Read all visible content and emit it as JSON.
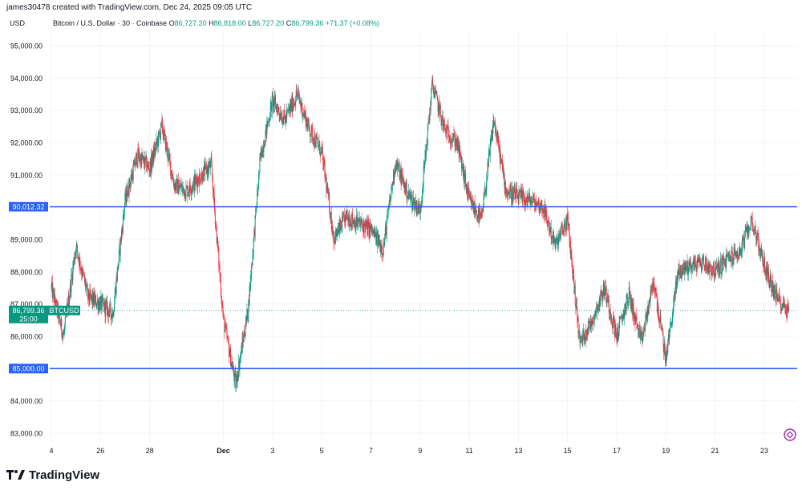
{
  "header": {
    "caption": "james30478 created with TradingView.com, Dec 24, 2025 09:05 UTC",
    "price_axis_title": "USD",
    "symbol_title": "Bitcoin / U.S. Dollar · 30 · Coinbase",
    "open_label": "O",
    "open": "86,727.20",
    "high_label": "H",
    "high": "86,818.00",
    "low_label": "L",
    "low": "86,727.20",
    "close_label": "C",
    "close": "86,799.36",
    "change": "+71.37 (+0.08%)"
  },
  "footer": {
    "brand": "TradingView"
  },
  "icons": {
    "logo": "tradingview-logo-icon",
    "refresh": "refresh-icon"
  },
  "colors": {
    "up": "#089981",
    "down": "#f23645",
    "line": "#2962ff",
    "price_label": "#089981",
    "grid": "#f0f3fa",
    "axis_text": "#131722"
  },
  "chart_data": {
    "type": "candlestick",
    "symbol": "BTCUSD",
    "title": "Bitcoin / U.S. Dollar · 30 · Coinbase",
    "ylim": [
      82600,
      95500
    ],
    "y_ticks": [
      83000,
      84000,
      85000,
      86000,
      87000,
      88000,
      89000,
      90000,
      91000,
      92000,
      93000,
      94000,
      95000
    ],
    "y_tick_labels": [
      "83,000.00",
      "84,000.00",
      "85,000.00",
      "86,000.00",
      "87,000.00",
      "88,000.00",
      "89,000.00",
      "90,000.00",
      "91,000.00",
      "92,000.00",
      "93,000.00",
      "94,000.00",
      "95,000.00"
    ],
    "x_start": "2025-11-24",
    "x_end": "2025-12-24",
    "x_ticks": [
      {
        "date": "2025-11-24",
        "label": "4"
      },
      {
        "date": "2025-11-26",
        "label": "26"
      },
      {
        "date": "2025-11-28",
        "label": "28"
      },
      {
        "date": "2025-12-01",
        "label": "Dec"
      },
      {
        "date": "2025-12-03",
        "label": "3"
      },
      {
        "date": "2025-12-05",
        "label": "5"
      },
      {
        "date": "2025-12-07",
        "label": "7"
      },
      {
        "date": "2025-12-09",
        "label": "9"
      },
      {
        "date": "2025-12-11",
        "label": "11"
      },
      {
        "date": "2025-12-13",
        "label": "13"
      },
      {
        "date": "2025-12-15",
        "label": "15"
      },
      {
        "date": "2025-12-17",
        "label": "17"
      },
      {
        "date": "2025-12-19",
        "label": "19"
      },
      {
        "date": "2025-12-21",
        "label": "21"
      },
      {
        "date": "2025-12-23",
        "label": "23"
      }
    ],
    "price_path": [
      [
        "2025-11-24",
        87500
      ],
      [
        "2025-11-24T12",
        86000
      ],
      [
        "2025-11-25",
        88800
      ],
      [
        "2025-11-25T12",
        87200
      ],
      [
        "2025-11-26",
        87000
      ],
      [
        "2025-11-26T12",
        86700
      ],
      [
        "2025-11-27",
        90200
      ],
      [
        "2025-11-27T12",
        91600
      ],
      [
        "2025-11-28",
        91200
      ],
      [
        "2025-11-28T12",
        92500
      ],
      [
        "2025-11-29",
        90700
      ],
      [
        "2025-11-29T12",
        90500
      ],
      [
        "2025-11-30",
        90900
      ],
      [
        "2025-11-30T12",
        91300
      ],
      [
        "2025-12-01",
        86500
      ],
      [
        "2025-12-01T12",
        84500
      ],
      [
        "2025-12-02",
        86800
      ],
      [
        "2025-12-02T12",
        91500
      ],
      [
        "2025-12-03",
        93300
      ],
      [
        "2025-12-03T12",
        92700
      ],
      [
        "2025-12-04",
        93500
      ],
      [
        "2025-12-04T12",
        92400
      ],
      [
        "2025-12-05",
        91700
      ],
      [
        "2025-12-05T12",
        89000
      ],
      [
        "2025-12-06",
        89700
      ],
      [
        "2025-12-06T12",
        89500
      ],
      [
        "2025-12-07",
        89300
      ],
      [
        "2025-12-07T12",
        88700
      ],
      [
        "2025-12-08",
        91400
      ],
      [
        "2025-12-08T12",
        90400
      ],
      [
        "2025-12-09",
        89900
      ],
      [
        "2025-12-09T12",
        93800
      ],
      [
        "2025-12-10",
        92400
      ],
      [
        "2025-12-10T12",
        92000
      ],
      [
        "2025-12-11",
        90200
      ],
      [
        "2025-12-11T12",
        89600
      ],
      [
        "2025-12-12",
        92700
      ],
      [
        "2025-12-12T12",
        90500
      ],
      [
        "2025-12-13",
        90300
      ],
      [
        "2025-12-13T12",
        90200
      ],
      [
        "2025-12-14",
        90000
      ],
      [
        "2025-12-14T12",
        88800
      ],
      [
        "2025-12-15",
        89600
      ],
      [
        "2025-12-15T12",
        85800
      ],
      [
        "2025-12-16",
        86500
      ],
      [
        "2025-12-16T12",
        87500
      ],
      [
        "2025-12-17",
        86000
      ],
      [
        "2025-12-17T12",
        87300
      ],
      [
        "2025-12-18",
        85800
      ],
      [
        "2025-12-18T12",
        87700
      ],
      [
        "2025-12-19",
        85300
      ],
      [
        "2025-12-19T12",
        88000
      ],
      [
        "2025-12-20",
        88200
      ],
      [
        "2025-12-20T12",
        88300
      ],
      [
        "2025-12-21",
        88000
      ],
      [
        "2025-12-21T12",
        88400
      ],
      [
        "2025-12-22",
        88600
      ],
      [
        "2025-12-22T12",
        89600
      ],
      [
        "2025-12-23",
        88200
      ],
      [
        "2025-12-23T12",
        87200
      ],
      [
        "2025-12-24",
        86800
      ]
    ],
    "horizontal_lines": [
      {
        "price": 90012.32,
        "label": "90,012.32"
      },
      {
        "price": 85000.0,
        "label": "85,000.00"
      }
    ],
    "last_price": {
      "price": 86799.36,
      "label": "86,799.36",
      "symbol": "BTCUSD",
      "countdown": "25:00"
    }
  }
}
